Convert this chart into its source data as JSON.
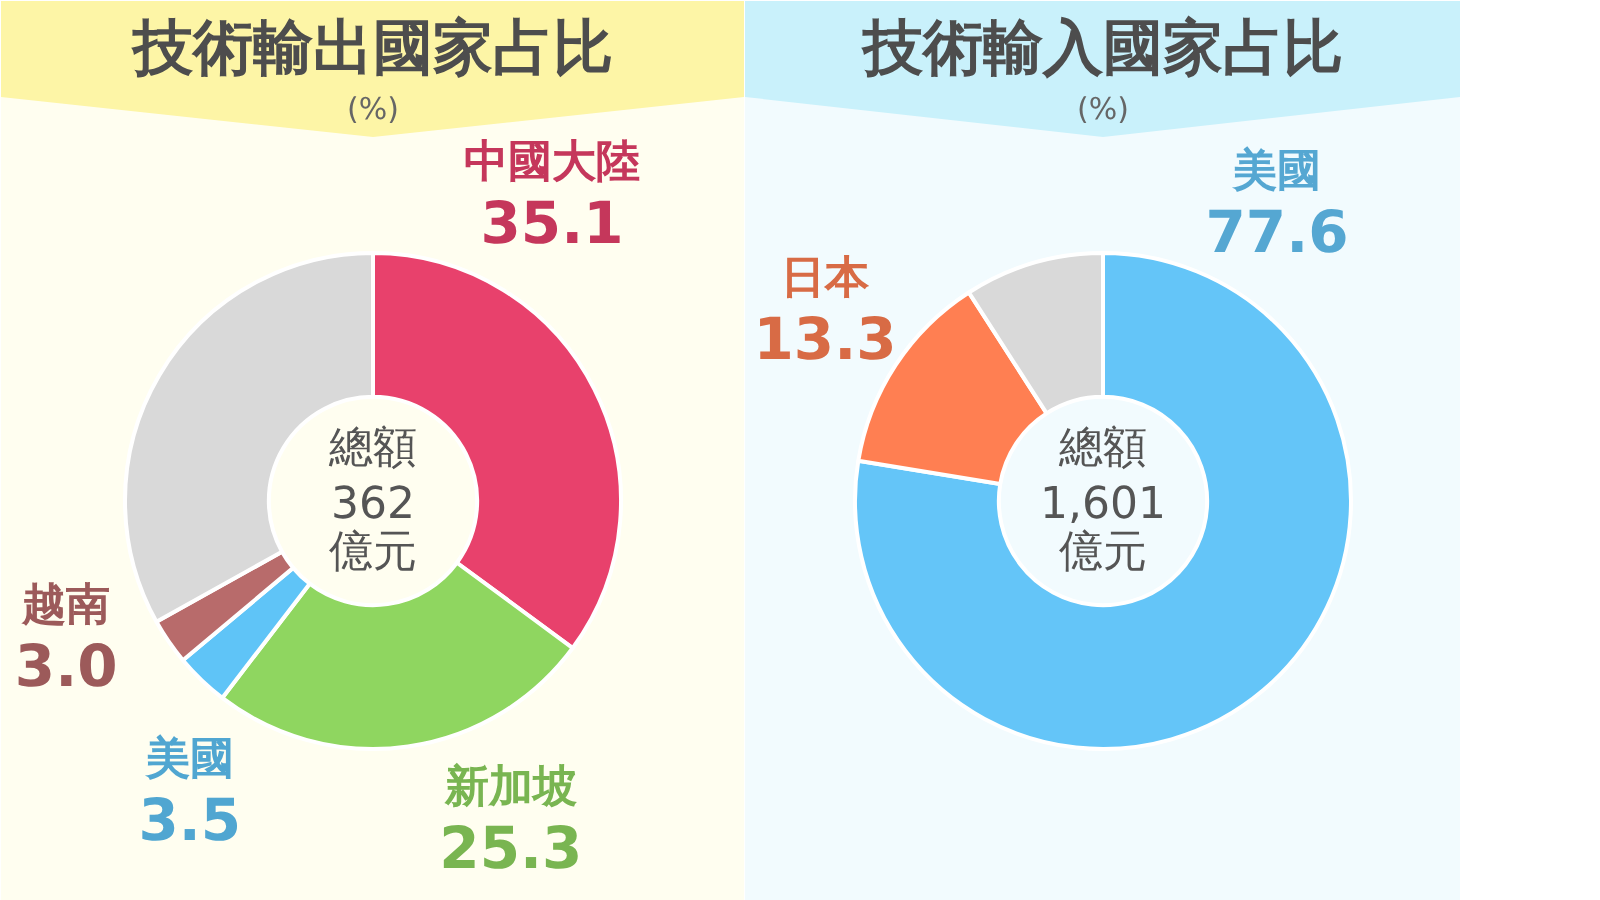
{
  "chart_data": [
    {
      "type": "donut",
      "title": "技術輸出國家占比",
      "subtitle": "(%)",
      "categories": [
        "中國大陸",
        "新加坡",
        "美國",
        "越南",
        null
      ],
      "values": [
        35.1,
        25.3,
        3.5,
        3.0,
        33.1
      ],
      "value_labels": [
        "35.1",
        "25.3",
        "3.5",
        "3.0",
        null
      ],
      "colors": [
        "#e8416c",
        "#8fd660",
        "#5fc4f7",
        "#b86b6b",
        "#d9d9d9"
      ],
      "annotations": [
        "總額\n362\n億元"
      ]
    },
    {
      "type": "donut",
      "title": "技術輸入國家占比",
      "subtitle": "(%)",
      "categories": [
        "美國",
        "日本",
        null
      ],
      "values": [
        77.6,
        13.3,
        9.1
      ],
      "value_labels": [
        "77.6",
        "13.3",
        null
      ],
      "colors": [
        "#64c5f8",
        "#ff7f52",
        "#d9d9d9"
      ],
      "annotations": [
        "總額\n1,601\n億元"
      ]
    }
  ]
}
